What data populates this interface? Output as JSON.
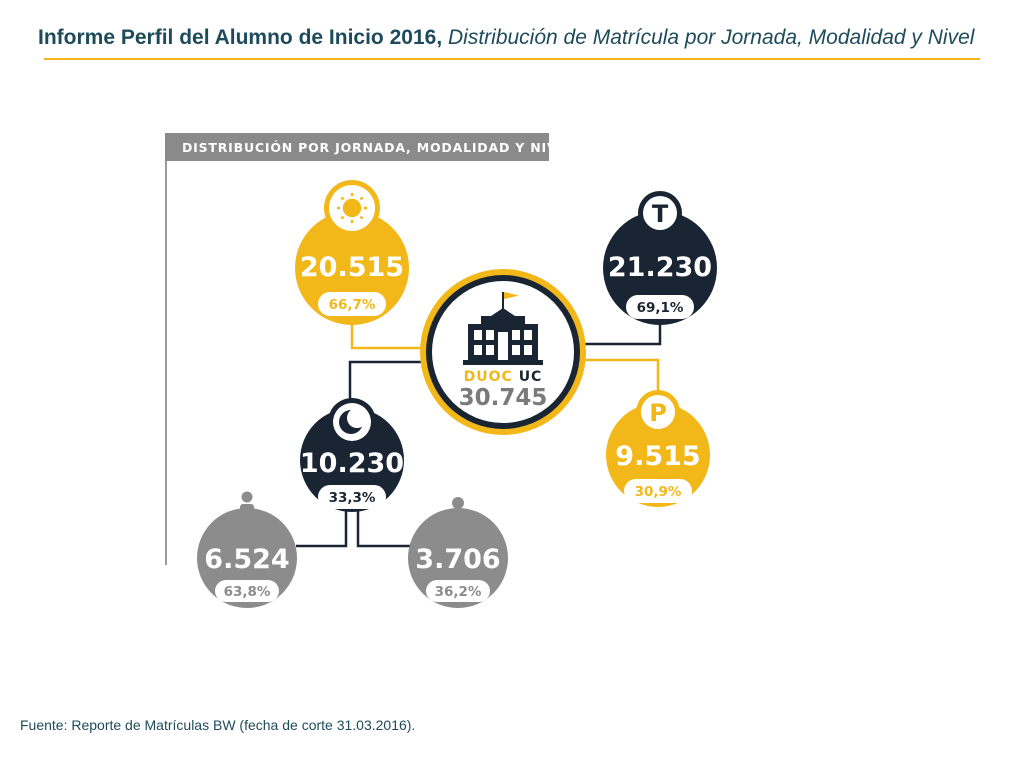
{
  "slide": {
    "title_main": "Informe Perfil del Alumno de Inicio 2016,",
    "title_sub": "Distribución de Matrícula por Jornada, Modalidad y Nivel",
    "source": "Fuente:  Reporte de Matrículas BW (fecha de corte 31.03.2016)."
  },
  "colors": {
    "accent": "#f2b81a",
    "dark": "#1a2533",
    "gray": "#8c8c8c",
    "title_text": "#1e4b5c",
    "header_bar": "#8a8a8a"
  },
  "diagram": {
    "header": "DISTRIBUCIÓN POR JORNADA, MODALIDAD Y NIVEL",
    "center": {
      "brand_a": "DUOC",
      "brand_b": "UC",
      "value": "30.745",
      "icon": "school-building-icon"
    },
    "nodes": {
      "diurna": {
        "value": "20.515",
        "pct": "66,7%",
        "icon": "sun-icon"
      },
      "tradicional": {
        "value": "21.230",
        "pct": "69,1%",
        "icon": "letter-t-icon"
      },
      "profesional": {
        "value": "9.515",
        "pct": "30,9%",
        "icon": "letter-p-icon"
      },
      "vespertina": {
        "value": "10.230",
        "pct": "33,3%",
        "icon": "crescent-moon-icon"
      },
      "adulto": {
        "value": "6.524",
        "pct": "63,8%",
        "icon": "person-icon"
      },
      "trabajador": {
        "value": "3.706",
        "pct": "36,2%",
        "icon": "worker-icon"
      }
    }
  }
}
